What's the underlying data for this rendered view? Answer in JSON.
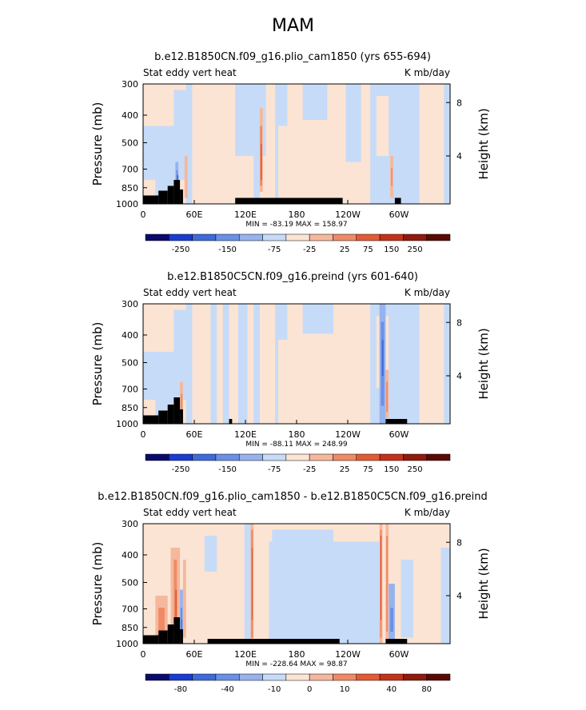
{
  "page": {
    "title": "MAM"
  },
  "colorbar_colors": [
    "#0a0a6e",
    "#1a3ccf",
    "#3f6ad9",
    "#6b90e5",
    "#97b3ee",
    "#c6dbf8",
    "#fbe4d4",
    "#f5b89c",
    "#ef8a66",
    "#e25b35",
    "#c3321a",
    "#8f1a0e",
    "#5a0a05"
  ],
  "chart_data": [
    {
      "type": "heatmap",
      "title": "b.e12.B1850CN.f09_g16.plio_cam1850 (yrs 655-694)",
      "left_label": "Stat eddy vert heat",
      "right_label": "K mb/day",
      "ylabel": "Pressure (mb)",
      "y2label": "Height (km)",
      "x_ticks": [
        "0",
        "60E",
        "120E",
        "180",
        "120W",
        "60W"
      ],
      "y_ticks": [
        "300",
        "400",
        "500",
        "700",
        "850",
        "1000"
      ],
      "y2_ticks": [
        "8",
        "4"
      ],
      "stats": "MIN = -83.19   MAX = 158.97",
      "min": -83.19,
      "max": 158.97,
      "colorbar_labels": [
        "-250",
        "-150",
        "-75",
        "-25",
        "25",
        "75",
        "150",
        "250"
      ]
    },
    {
      "type": "heatmap",
      "title": "b.e12.B1850C5CN.f09_g16.preind (yrs 601-640)",
      "left_label": "Stat eddy vert heat",
      "right_label": "K mb/day",
      "ylabel": "Pressure (mb)",
      "y2label": "Height (km)",
      "x_ticks": [
        "0",
        "60E",
        "120E",
        "180",
        "120W",
        "60W"
      ],
      "y_ticks": [
        "300",
        "400",
        "500",
        "700",
        "850",
        "1000"
      ],
      "y2_ticks": [
        "8",
        "4"
      ],
      "stats": "MIN = -88.11   MAX = 248.99",
      "min": -88.11,
      "max": 248.99,
      "colorbar_labels": [
        "-250",
        "-150",
        "-75",
        "-25",
        "25",
        "75",
        "150",
        "250"
      ]
    },
    {
      "type": "heatmap",
      "title": "b.e12.B1850CN.f09_g16.plio_cam1850 - b.e12.B1850C5CN.f09_g16.preind",
      "left_label": "Stat eddy vert heat",
      "right_label": "K mb/day",
      "ylabel": "Pressure (mb)",
      "y2label": "Height (km)",
      "x_ticks": [
        "0",
        "60E",
        "120E",
        "180",
        "120W",
        "60W"
      ],
      "y_ticks": [
        "300",
        "400",
        "500",
        "700",
        "850",
        "1000"
      ],
      "y2_ticks": [
        "8",
        "4"
      ],
      "stats": "MIN = -228.64   MAX = 98.87",
      "min": -228.64,
      "max": 98.87,
      "colorbar_labels": [
        "-80",
        "-40",
        "-10",
        "0",
        "10",
        "40",
        "80"
      ]
    }
  ]
}
